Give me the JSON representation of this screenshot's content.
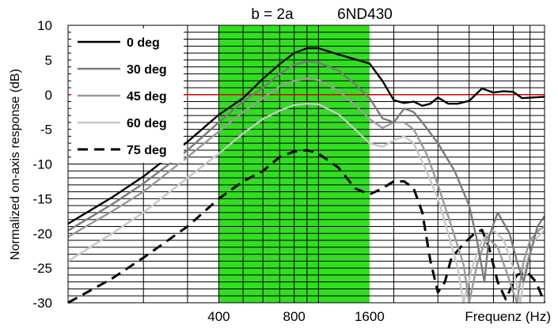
{
  "chart_data": {
    "type": "line",
    "title": "b = 2a",
    "subtitle": "6ND430",
    "xlabel": "Frequenz (Hz)",
    "ylabel": "Normalized on-axis response (dB)",
    "x_scale": "log",
    "xlim": [
      100,
      8000
    ],
    "ylim": [
      -30,
      10
    ],
    "x_ticks": [
      {
        "value": 400,
        "label": "400"
      },
      {
        "value": 800,
        "label": "800"
      },
      {
        "value": 1600,
        "label": "1600"
      }
    ],
    "y_ticks": [
      10,
      5,
      0,
      -5,
      -10,
      -15,
      -20,
      -25,
      -30
    ],
    "grid": true,
    "highlight_band": {
      "from": 400,
      "to": 1600,
      "color": "#33dd22"
    },
    "reference_line": {
      "y": 0,
      "color": "#dd0000"
    },
    "legend_position": "top-left",
    "series": [
      {
        "name": "0 deg",
        "color": "#000000",
        "dash": "solid",
        "points": [
          [
            100,
            -18.6
          ],
          [
            150,
            -14.8
          ],
          [
            200,
            -11.8
          ],
          [
            300,
            -6.8
          ],
          [
            400,
            -2.9
          ],
          [
            500,
            -0.5
          ],
          [
            600,
            2.3
          ],
          [
            700,
            4.4
          ],
          [
            800,
            6.0
          ],
          [
            900,
            6.7
          ],
          [
            1000,
            6.7
          ],
          [
            1200,
            5.8
          ],
          [
            1400,
            5.1
          ],
          [
            1600,
            4.5
          ],
          [
            1800,
            2.0
          ],
          [
            2000,
            -0.8
          ],
          [
            2200,
            -1.2
          ],
          [
            2400,
            -1.0
          ],
          [
            2600,
            -1.6
          ],
          [
            2800,
            -1.3
          ],
          [
            3000,
            -0.4
          ],
          [
            3300,
            -1.3
          ],
          [
            3600,
            -1.3
          ],
          [
            4000,
            -0.9
          ],
          [
            4500,
            0.9
          ],
          [
            5000,
            0.3
          ],
          [
            5500,
            0.5
          ],
          [
            6000,
            0.4
          ],
          [
            6500,
            -0.5
          ],
          [
            7200,
            -0.4
          ],
          [
            8000,
            -0.3
          ]
        ]
      },
      {
        "name": "30 deg",
        "color": "#7a7a7a",
        "dash": "solid",
        "points": [
          [
            100,
            -19.6
          ],
          [
            150,
            -15.8
          ],
          [
            200,
            -12.8
          ],
          [
            300,
            -8.0
          ],
          [
            400,
            -4.0
          ],
          [
            500,
            -1.0
          ],
          [
            600,
            1.0
          ],
          [
            700,
            3.0
          ],
          [
            800,
            4.3
          ],
          [
            900,
            4.8
          ],
          [
            1000,
            4.6
          ],
          [
            1200,
            3.5
          ],
          [
            1400,
            1.5
          ],
          [
            1600,
            -0.5
          ],
          [
            1800,
            -3.4
          ],
          [
            2000,
            -4.0
          ],
          [
            2200,
            -2.0
          ],
          [
            2400,
            -2.5
          ],
          [
            2600,
            -4.0
          ],
          [
            3000,
            -7.0
          ],
          [
            3500,
            -11.0
          ],
          [
            4000,
            -16.0
          ],
          [
            4300,
            -21.0
          ],
          [
            4600,
            -27.0
          ],
          [
            4800,
            -20.5
          ],
          [
            5200,
            -17.0
          ],
          [
            5800,
            -20.0
          ],
          [
            6200,
            -24.0
          ],
          [
            6600,
            -27.0
          ],
          [
            7000,
            -23.0
          ],
          [
            7500,
            -19.0
          ],
          [
            8000,
            -17.5
          ]
        ]
      },
      {
        "name": "45 deg",
        "color": "#9a9a9a",
        "dash": "solid",
        "points": [
          [
            100,
            -20.5
          ],
          [
            150,
            -16.8
          ],
          [
            200,
            -14.0
          ],
          [
            300,
            -9.0
          ],
          [
            400,
            -5.3
          ],
          [
            500,
            -2.5
          ],
          [
            600,
            -0.5
          ],
          [
            700,
            1.2
          ],
          [
            800,
            2.0
          ],
          [
            900,
            2.3
          ],
          [
            1000,
            2.1
          ],
          [
            1200,
            0.6
          ],
          [
            1400,
            -1.5
          ],
          [
            1600,
            -3.5
          ],
          [
            1800,
            -4.8
          ],
          [
            2000,
            -4.0
          ],
          [
            2200,
            -4.0
          ],
          [
            2400,
            -5.0
          ],
          [
            2700,
            -8.5
          ],
          [
            3000,
            -13.0
          ],
          [
            3400,
            -19.0
          ],
          [
            3800,
            -24.5
          ],
          [
            4000,
            -30.0
          ],
          [
            4300,
            -24.5
          ],
          [
            4700,
            -20.5
          ],
          [
            5200,
            -22.0
          ],
          [
            5700,
            -26.0
          ],
          [
            6200,
            -30.0
          ],
          [
            6600,
            -24.0
          ],
          [
            7000,
            -21.0
          ],
          [
            7600,
            -19.5
          ],
          [
            8000,
            -19.0
          ]
        ]
      },
      {
        "name": "60 deg",
        "color": "#c8c8c8",
        "dash": "solid",
        "points": [
          [
            100,
            -24.0
          ],
          [
            150,
            -20.0
          ],
          [
            200,
            -17.0
          ],
          [
            300,
            -12.0
          ],
          [
            400,
            -8.5
          ],
          [
            500,
            -5.6
          ],
          [
            600,
            -3.5
          ],
          [
            700,
            -2.3
          ],
          [
            800,
            -1.5
          ],
          [
            900,
            -1.3
          ],
          [
            1000,
            -1.4
          ],
          [
            1200,
            -2.8
          ],
          [
            1400,
            -5.0
          ],
          [
            1600,
            -7.0
          ],
          [
            1800,
            -7.5
          ],
          [
            2000,
            -6.6
          ],
          [
            2200,
            -6.0
          ],
          [
            2400,
            -7.0
          ],
          [
            2700,
            -11.0
          ],
          [
            3000,
            -15.0
          ],
          [
            3300,
            -20.0
          ],
          [
            3600,
            -25.0
          ],
          [
            3800,
            -30.0
          ],
          [
            4100,
            -25.0
          ],
          [
            4500,
            -21.0
          ],
          [
            5000,
            -19.5
          ],
          [
            5500,
            -21.0
          ],
          [
            6000,
            -25.0
          ],
          [
            6400,
            -30.0
          ],
          [
            6800,
            -24.0
          ],
          [
            7300,
            -21.0
          ],
          [
            8000,
            -19.5
          ]
        ]
      },
      {
        "name": "75 deg",
        "color": "#000000",
        "dash": "dashed",
        "points": [
          [
            100,
            -30.0
          ],
          [
            150,
            -26.5
          ],
          [
            200,
            -23.5
          ],
          [
            300,
            -19.0
          ],
          [
            400,
            -15.0
          ],
          [
            500,
            -12.5
          ],
          [
            600,
            -11.0
          ],
          [
            700,
            -9.0
          ],
          [
            800,
            -8.2
          ],
          [
            900,
            -8.0
          ],
          [
            1000,
            -8.5
          ],
          [
            1200,
            -10.5
          ],
          [
            1400,
            -13.5
          ],
          [
            1600,
            -14.4
          ],
          [
            1800,
            -13.5
          ],
          [
            2000,
            -12.5
          ],
          [
            2200,
            -12.5
          ],
          [
            2400,
            -13.5
          ],
          [
            2600,
            -17.0
          ],
          [
            2800,
            -24.0
          ],
          [
            3000,
            -28.5
          ],
          [
            3200,
            -27.0
          ],
          [
            3400,
            -23.5
          ],
          [
            3800,
            -21.5
          ],
          [
            4200,
            -20.0
          ],
          [
            4500,
            -19.5
          ],
          [
            4800,
            -22.0
          ],
          [
            5200,
            -27.0
          ],
          [
            5600,
            -29.5
          ],
          [
            6200,
            -26.0
          ],
          [
            6800,
            -25.5
          ],
          [
            7400,
            -27.0
          ],
          [
            8000,
            -30.0
          ]
        ]
      }
    ]
  }
}
